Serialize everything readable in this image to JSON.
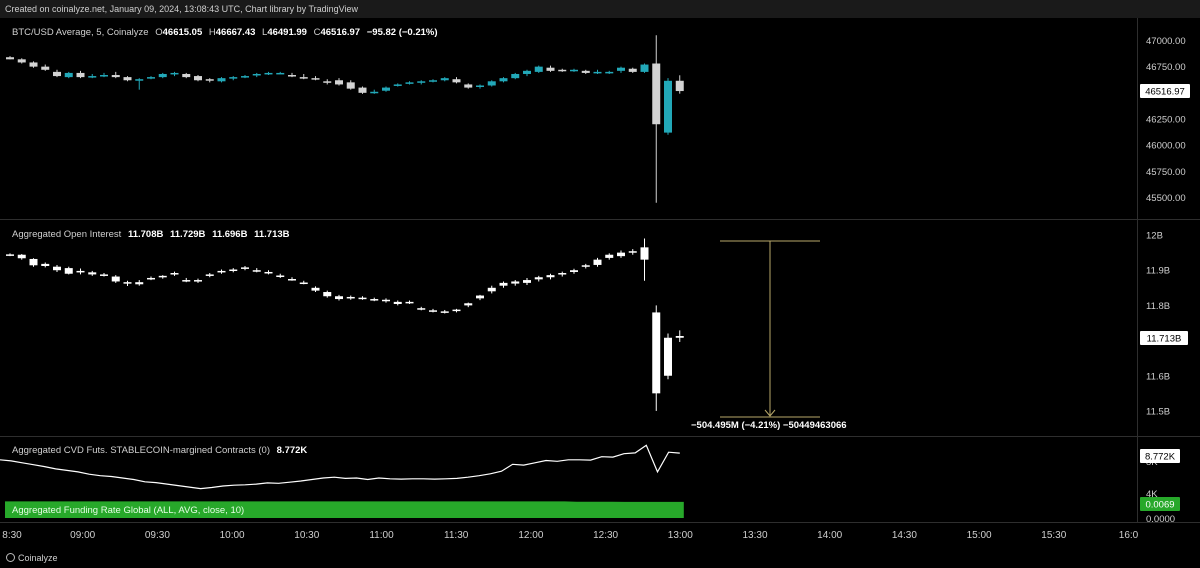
{
  "banner": "Created on coinalyze.net, January 09, 2024, 13:08:43 UTC, Chart library by TradingView",
  "footer": "Coinalyze",
  "colors": {
    "up": "#22a8b8",
    "down": "#d3d3d3",
    "oi": "#ffffff",
    "funding": "#27a82a",
    "measure": "#b8a86a",
    "bg": "#000000",
    "grid_line": "#333333"
  },
  "time_axis": [
    "8:30",
    "09:00",
    "09:30",
    "10:00",
    "10:30",
    "11:00",
    "11:30",
    "12:00",
    "12:30",
    "13:00",
    "13:30",
    "14:00",
    "14:30",
    "15:00",
    "15:30",
    "16:0"
  ],
  "panels": {
    "price": {
      "title": "BTC/USD Average, 5, Coinalyze",
      "o_label": "O",
      "o": "46615.05",
      "h_label": "H",
      "h": "46667.43",
      "l_label": "L",
      "l": "46491.99",
      "c_label": "C",
      "c": "46516.97",
      "change": "−95.82 (−0.21%)",
      "last_label": "46516.97"
    },
    "oi": {
      "title": "Aggregated Open Interest",
      "o": "11.708B",
      "h": "11.729B",
      "l": "11.696B",
      "c": "11.713B",
      "last_label": "11.713B",
      "measure_label": "−504.495M (−4.21%) −504494630​66"
    },
    "cvd": {
      "title": "Aggregated CVD Futs. STABLECOIN-margined Contracts (0)",
      "value": "8.772K",
      "last_label": "8.772K",
      "tick_8k": "8K",
      "tick_4k": "4K"
    },
    "funding": {
      "title": "Aggregated Funding Rate Global (ALL, AVG, close, 10)",
      "last_label": "0.0069",
      "tick_0": "0.0000"
    }
  },
  "chart_data": [
    {
      "type": "candlestick",
      "title": "BTC/USD Average, 5, Coinalyze",
      "yticks": [
        45500,
        45750,
        46000,
        46250,
        46500,
        46750,
        47000
      ],
      "ylim": [
        45400,
        47100
      ],
      "candles": [
        [
          46840,
          46850,
          46820,
          46820
        ],
        [
          46820,
          46830,
          46780,
          46790
        ],
        [
          46790,
          46800,
          46740,
          46750
        ],
        [
          46750,
          46770,
          46710,
          46720
        ],
        [
          46700,
          46720,
          46650,
          46660
        ],
        [
          46650,
          46700,
          46640,
          46690
        ],
        [
          46690,
          46710,
          46640,
          46650
        ],
        [
          46650,
          46680,
          46640,
          46660
        ],
        [
          46670,
          46690,
          46650,
          46670
        ],
        [
          46670,
          46700,
          46640,
          46650
        ],
        [
          46650,
          46660,
          46610,
          46620
        ],
        [
          46620,
          46640,
          46530,
          46630
        ],
        [
          46640,
          46660,
          46630,
          46650
        ],
        [
          46650,
          46690,
          46640,
          46680
        ],
        [
          46680,
          46700,
          46660,
          46690
        ],
        [
          46680,
          46690,
          46640,
          46650
        ],
        [
          46660,
          46670,
          46610,
          46620
        ],
        [
          46630,
          46640,
          46600,
          46620
        ],
        [
          46610,
          46650,
          46600,
          46640
        ],
        [
          46640,
          46660,
          46620,
          46650
        ],
        [
          46650,
          46670,
          46640,
          46660
        ],
        [
          46670,
          46690,
          46650,
          46680
        ],
        [
          46680,
          46700,
          46670,
          46690
        ],
        [
          46690,
          46700,
          46680,
          46690
        ],
        [
          46670,
          46690,
          46650,
          46660
        ],
        [
          46650,
          46680,
          46630,
          46640
        ],
        [
          46640,
          46660,
          46620,
          46630
        ],
        [
          46610,
          46630,
          46580,
          46600
        ],
        [
          46620,
          46640,
          46570,
          46580
        ],
        [
          46600,
          46620,
          46530,
          46540
        ],
        [
          46550,
          46560,
          46490,
          46500
        ],
        [
          46500,
          46530,
          46490,
          46510
        ],
        [
          46520,
          46560,
          46510,
          46550
        ],
        [
          46570,
          46590,
          46560,
          46580
        ],
        [
          46590,
          46610,
          46580,
          46600
        ],
        [
          46600,
          46620,
          46580,
          46610
        ],
        [
          46610,
          46630,
          46600,
          46620
        ],
        [
          46620,
          46650,
          46610,
          46640
        ],
        [
          46630,
          46650,
          46590,
          46600
        ],
        [
          46580,
          46590,
          46540,
          46550
        ],
        [
          46560,
          46580,
          46540,
          46570
        ],
        [
          46570,
          46620,
          46560,
          46610
        ],
        [
          46610,
          46650,
          46600,
          46640
        ],
        [
          46640,
          46690,
          46630,
          46680
        ],
        [
          46680,
          46720,
          46660,
          46710
        ],
        [
          46700,
          46760,
          46690,
          46750
        ],
        [
          46740,
          46760,
          46700,
          46710
        ],
        [
          46720,
          46730,
          46700,
          46710
        ],
        [
          46710,
          46730,
          46700,
          46720
        ],
        [
          46710,
          46720,
          46680,
          46690
        ],
        [
          46690,
          46720,
          46680,
          46700
        ],
        [
          46690,
          46710,
          46680,
          46700
        ],
        [
          46710,
          46750,
          46690,
          46740
        ],
        [
          46730,
          46740,
          46690,
          46700
        ],
        [
          46700,
          46780,
          46690,
          46770
        ],
        [
          46780,
          47050,
          45450,
          46200
        ],
        [
          46120,
          46640,
          46100,
          46615
        ],
        [
          46615.05,
          46667.43,
          46491.99,
          46516.97
        ]
      ]
    },
    {
      "type": "candlestick",
      "title": "Aggregated Open Interest",
      "yticks": [
        "11.5B",
        "11.6B",
        "11.7B",
        "11.8B",
        "11.9B",
        "12B"
      ],
      "ylim": [
        11.46,
        12.02
      ],
      "candles": [
        [
          11.945,
          11.948,
          11.94,
          11.944
        ],
        [
          11.944,
          11.946,
          11.93,
          11.934
        ],
        [
          11.932,
          11.934,
          11.91,
          11.914
        ],
        [
          11.918,
          11.922,
          11.908,
          11.912
        ],
        [
          11.91,
          11.915,
          11.895,
          11.9
        ],
        [
          11.89,
          11.91,
          11.888,
          11.906
        ],
        [
          11.898,
          11.905,
          11.888,
          11.894
        ],
        [
          11.894,
          11.898,
          11.884,
          11.888
        ],
        [
          11.888,
          11.892,
          11.882,
          11.886
        ],
        [
          11.882,
          11.886,
          11.864,
          11.868
        ],
        [
          11.866,
          11.87,
          11.855,
          11.862
        ],
        [
          11.86,
          11.872,
          11.856,
          11.866
        ],
        [
          11.876,
          11.882,
          11.872,
          11.878
        ],
        [
          11.88,
          11.886,
          11.876,
          11.884
        ],
        [
          11.89,
          11.896,
          11.884,
          11.892
        ],
        [
          11.872,
          11.878,
          11.866,
          11.868
        ],
        [
          11.87,
          11.876,
          11.864,
          11.872
        ],
        [
          11.885,
          11.892,
          11.88,
          11.888
        ],
        [
          11.895,
          11.902,
          11.89,
          11.898
        ],
        [
          11.9,
          11.906,
          11.894,
          11.902
        ],
        [
          11.905,
          11.912,
          11.9,
          11.908
        ],
        [
          11.9,
          11.906,
          11.894,
          11.896
        ],
        [
          11.895,
          11.9,
          11.888,
          11.892
        ],
        [
          11.885,
          11.89,
          11.878,
          11.882
        ],
        [
          11.875,
          11.88,
          11.87,
          11.874
        ],
        [
          11.865,
          11.87,
          11.86,
          11.864
        ],
        [
          11.85,
          11.854,
          11.838,
          11.842
        ],
        [
          11.838,
          11.842,
          11.822,
          11.826
        ],
        [
          11.826,
          11.83,
          11.814,
          11.818
        ],
        [
          11.822,
          11.828,
          11.816,
          11.824
        ],
        [
          11.82,
          11.826,
          11.816,
          11.822
        ],
        [
          11.818,
          11.822,
          11.812,
          11.816
        ],
        [
          11.816,
          11.82,
          11.808,
          11.812
        ],
        [
          11.81,
          11.814,
          11.8,
          11.804
        ],
        [
          11.81,
          11.814,
          11.804,
          11.81
        ],
        [
          11.792,
          11.796,
          11.786,
          11.79
        ],
        [
          11.785,
          11.79,
          11.78,
          11.786
        ],
        [
          11.783,
          11.787,
          11.777,
          11.78
        ],
        [
          11.784,
          11.79,
          11.78,
          11.788
        ],
        [
          11.8,
          11.808,
          11.795,
          11.806
        ],
        [
          11.82,
          11.83,
          11.815,
          11.828
        ],
        [
          11.84,
          11.856,
          11.834,
          11.85
        ],
        [
          11.856,
          11.868,
          11.85,
          11.864
        ],
        [
          11.862,
          11.872,
          11.856,
          11.868
        ],
        [
          11.864,
          11.878,
          11.858,
          11.872
        ],
        [
          11.874,
          11.884,
          11.868,
          11.88
        ],
        [
          11.88,
          11.89,
          11.874,
          11.886
        ],
        [
          11.888,
          11.896,
          11.882,
          11.892
        ],
        [
          11.895,
          11.904,
          11.89,
          11.9
        ],
        [
          11.91,
          11.918,
          11.905,
          11.914
        ],
        [
          11.915,
          11.935,
          11.91,
          11.93
        ],
        [
          11.935,
          11.948,
          11.93,
          11.944
        ],
        [
          11.94,
          11.956,
          11.935,
          11.95
        ],
        [
          11.95,
          11.96,
          11.944,
          11.954
        ],
        [
          11.93,
          11.99,
          11.87,
          11.965
        ],
        [
          11.78,
          11.8,
          11.5,
          11.55
        ],
        [
          11.6,
          11.72,
          11.59,
          11.708
        ],
        [
          11.708,
          11.729,
          11.696,
          11.713
        ]
      ]
    },
    {
      "type": "line",
      "title": "Aggregated CVD Futs. STABLECOIN-margined Contracts (0)",
      "yticks": [
        "4K",
        "8K"
      ],
      "ylim": [
        3000,
        10500
      ],
      "values": [
        7900,
        7750,
        7500,
        7250,
        7000,
        6700,
        6500,
        6300,
        6000,
        5800,
        5700,
        5500,
        5300,
        5000,
        4900,
        4700,
        4500,
        4300,
        4100,
        4250,
        4450,
        4550,
        4600,
        4700,
        4850,
        4800,
        4950,
        5100,
        5300,
        5500,
        5600,
        5450,
        5500,
        5300,
        5500,
        5400,
        5350,
        5400,
        5400,
        5350,
        5400,
        5450,
        5600,
        5800,
        6050,
        6400,
        7300,
        7200,
        7500,
        7800,
        7700,
        7900,
        7900,
        7850,
        8300,
        8250,
        8700,
        8800,
        9800,
        6300,
        8900,
        8772
      ]
    },
    {
      "type": "area",
      "title": "Aggregated Funding Rate Global (ALL, AVG, close, 10)",
      "yticks": [
        "0.0000"
      ],
      "ylim": [
        0,
        0.009
      ],
      "values": [
        0.0071,
        0.0071,
        0.0071,
        0.0071,
        0.0071,
        0.0071,
        0.0071,
        0.0071,
        0.0071,
        0.0071,
        0.0071,
        0.0071,
        0.0071,
        0.0071,
        0.0071,
        0.0071,
        0.0071,
        0.0071,
        0.0071,
        0.0071,
        0.0071,
        0.0071,
        0.0071,
        0.0071,
        0.0071,
        0.0071,
        0.0071,
        0.0071,
        0.0071,
        0.0071,
        0.0071,
        0.0071,
        0.0071,
        0.0071,
        0.0071,
        0.0071,
        0.0071,
        0.0071,
        0.0071,
        0.0071,
        0.0071,
        0.0071,
        0.0071,
        0.0071,
        0.0071,
        0.0071,
        0.0071,
        0.0071,
        0.007,
        0.007,
        0.007,
        0.007,
        0.0069,
        0.0069,
        0.0069,
        0.0069,
        0.0069,
        0.0069
      ]
    }
  ]
}
